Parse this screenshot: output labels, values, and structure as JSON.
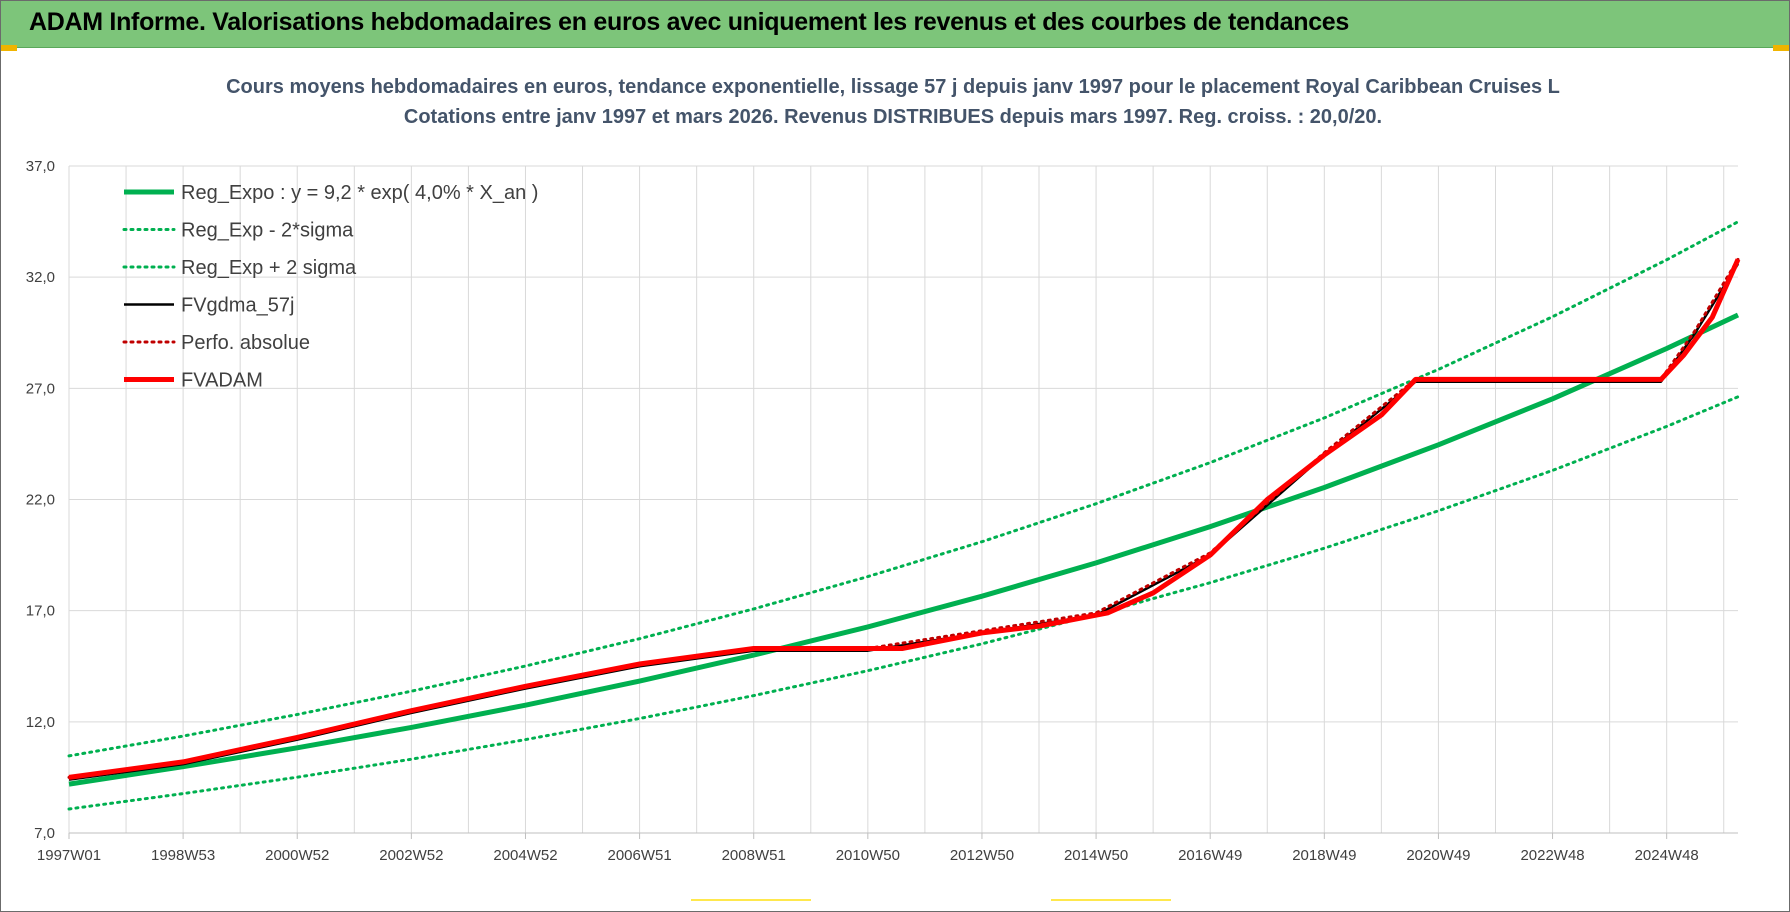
{
  "report": {
    "banner_title": "ADAM Informe. Valorisations hebdomadaires en euros avec uniquement les revenus et des courbes de tendances"
  },
  "colors": {
    "banner": "#7dc57a",
    "trend": "#00b050",
    "fvgdma": "#000000",
    "perfo": "#c00000",
    "fvadam": "#ff0000",
    "title": "#44546a"
  },
  "chart_data": {
    "type": "line",
    "title": "Cours moyens hebdomadaires en euros, tendance exponentielle, lissage 57 j depuis janv 1997 pour le placement Royal Caribbean Cruises L",
    "subtitle": "Cotations entre janv 1997 et mars 2026. Revenus DISTRIBUES depuis mars 1997. Reg. croiss. : 20,0/20.",
    "xlabel": "",
    "ylabel": "",
    "xlim": [
      1997.0,
      2026.25
    ],
    "ylim": [
      7.0,
      37.0
    ],
    "y_ticks": [
      "7,0",
      "12,0",
      "17,0",
      "22,0",
      "27,0",
      "32,0",
      "37,0"
    ],
    "x_ticks": [
      {
        "label": "1997W01",
        "x": 1997.0
      },
      {
        "label": "1998W53",
        "x": 1999.0
      },
      {
        "label": "2000W52",
        "x": 2001.0
      },
      {
        "label": "2002W52",
        "x": 2003.0
      },
      {
        "label": "2004W52",
        "x": 2005.0
      },
      {
        "label": "2006W51",
        "x": 2007.0
      },
      {
        "label": "2008W51",
        "x": 2009.0
      },
      {
        "label": "2010W50",
        "x": 2011.0
      },
      {
        "label": "2012W50",
        "x": 2013.0
      },
      {
        "label": "2014W50",
        "x": 2015.0
      },
      {
        "label": "2016W49",
        "x": 2017.0
      },
      {
        "label": "2018W49",
        "x": 2019.0
      },
      {
        "label": "2020W49",
        "x": 2021.0
      },
      {
        "label": "2022W48",
        "x": 2023.0
      },
      {
        "label": "2024W48",
        "x": 2025.0
      }
    ],
    "grid": true,
    "legend_position": "top-left",
    "series": [
      {
        "name": "Reg_Expo : y = 9,2 * exp( 4,0% *  X_an )",
        "style": "solid-thick",
        "color": "#00b050",
        "x": [
          1997.0,
          1999.0,
          2001.0,
          2003.0,
          2005.0,
          2007.0,
          2009.0,
          2011.0,
          2013.0,
          2015.0,
          2017.0,
          2019.0,
          2021.0,
          2023.0,
          2025.0,
          2026.25
        ],
        "y": [
          9.2,
          9.98,
          10.83,
          11.75,
          12.75,
          13.83,
          15.0,
          16.27,
          17.65,
          19.15,
          20.78,
          22.54,
          24.46,
          26.53,
          28.79,
          30.3
        ]
      },
      {
        "name": "Reg_Exp - 2*sigma",
        "style": "dotted",
        "color": "#00b050",
        "x": [
          1997.0,
          1999.0,
          2001.0,
          2003.0,
          2005.0,
          2007.0,
          2009.0,
          2011.0,
          2013.0,
          2015.0,
          2017.0,
          2019.0,
          2021.0,
          2023.0,
          2025.0,
          2026.25
        ],
        "y": [
          8.08,
          8.77,
          9.51,
          10.32,
          11.2,
          12.15,
          13.18,
          14.3,
          15.51,
          16.83,
          18.26,
          19.81,
          21.49,
          23.31,
          25.29,
          26.62
        ]
      },
      {
        "name": "Reg_Exp + 2 sigma",
        "style": "dotted",
        "color": "#00b050",
        "x": [
          1997.0,
          1999.0,
          2001.0,
          2003.0,
          2005.0,
          2007.0,
          2009.0,
          2011.0,
          2013.0,
          2015.0,
          2017.0,
          2019.0,
          2021.0,
          2023.0,
          2025.0,
          2026.25
        ],
        "y": [
          10.47,
          11.36,
          12.33,
          13.38,
          14.51,
          15.74,
          17.08,
          18.53,
          20.1,
          21.81,
          23.66,
          25.67,
          27.85,
          30.22,
          32.78,
          34.49
        ]
      },
      {
        "name": "FVgdma_57j",
        "style": "solid",
        "color": "#000000",
        "x": [
          1997.0,
          1999.0,
          2001.0,
          2003.0,
          2005.0,
          2007.0,
          2009.0,
          2011.0,
          2013.0,
          2015.0,
          2017.0,
          2019.0,
          2020.6,
          2024.9,
          2025.5,
          2026.25
        ],
        "y": [
          9.4,
          10.1,
          11.2,
          12.4,
          13.5,
          14.5,
          15.2,
          15.2,
          16.0,
          16.8,
          19.5,
          24.0,
          27.3,
          27.3,
          29.5,
          32.6
        ]
      },
      {
        "name": "Perfo. absolue",
        "style": "dotted",
        "color": "#c00000",
        "x": [
          1997.0,
          1999.0,
          2001.0,
          2003.0,
          2005.0,
          2007.0,
          2009.0,
          2011.0,
          2013.0,
          2015.0,
          2017.0,
          2019.0,
          2020.6,
          2024.9,
          2025.5,
          2026.25
        ],
        "y": [
          9.5,
          10.2,
          11.3,
          12.5,
          13.6,
          14.6,
          15.3,
          15.3,
          16.1,
          16.9,
          19.6,
          24.1,
          27.4,
          27.4,
          29.6,
          32.8
        ]
      },
      {
        "name": "FVADAM",
        "style": "solid-thick",
        "color": "#ff0000",
        "x": [
          1997.0,
          1999.0,
          2001.0,
          2003.0,
          2005.0,
          2007.0,
          2009.0,
          2010.6,
          2011.6,
          2013.0,
          2014.0,
          2015.2,
          2016.0,
          2017.0,
          2018.0,
          2019.0,
          2020.0,
          2020.6,
          2024.9,
          2025.3,
          2025.8,
          2026.25
        ],
        "y": [
          9.5,
          10.2,
          11.3,
          12.5,
          13.6,
          14.6,
          15.3,
          15.3,
          15.3,
          16.0,
          16.3,
          16.9,
          17.8,
          19.5,
          22.0,
          24.0,
          25.8,
          27.4,
          27.4,
          28.5,
          30.2,
          32.8
        ]
      }
    ]
  }
}
